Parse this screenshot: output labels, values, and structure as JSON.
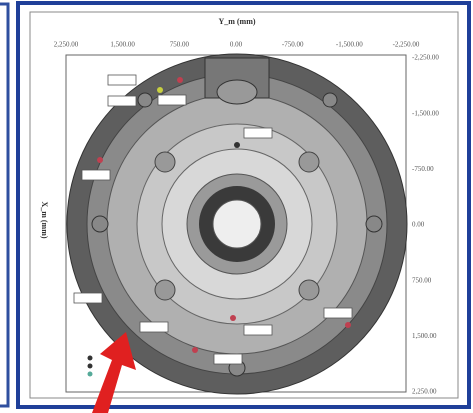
{
  "figure": {
    "x_axis_title": "Y_m (mm)",
    "y_axis_title": "X_m (mm)",
    "top_ticks": [
      "2,250.00",
      "1,500.00",
      "750.00",
      "0.00",
      "-750.00",
      "-1,500.00",
      "-2,250.00"
    ],
    "right_ticks": [
      "-2,250.00",
      "-1,500.00",
      "-750.00",
      "0.00",
      "750.00",
      "1,500.00",
      "2,250.00"
    ]
  }
}
